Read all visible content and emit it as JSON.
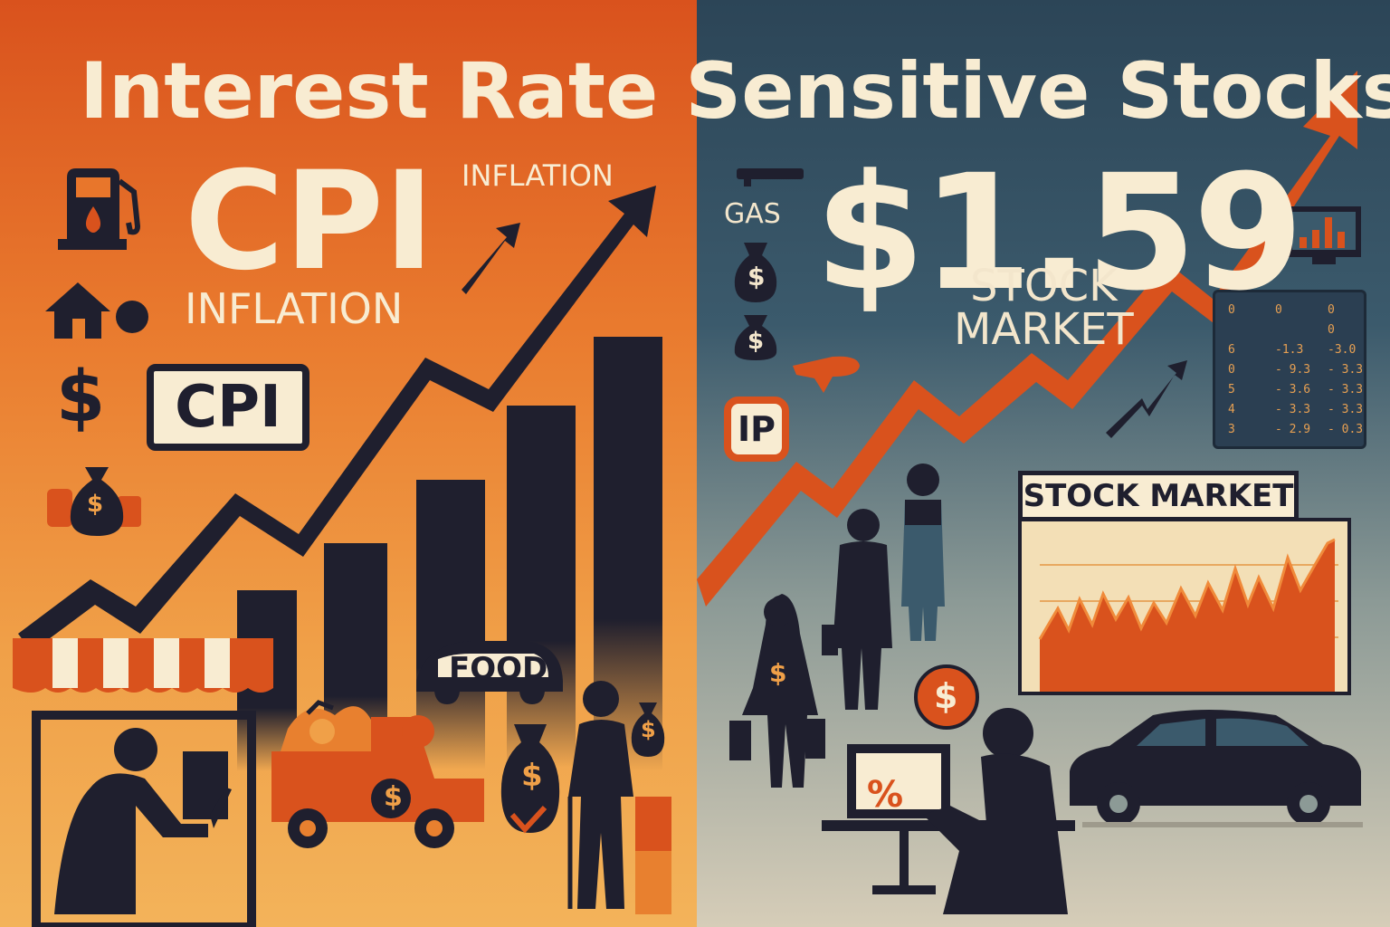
{
  "title": "Interest Rate Sensitive Stocks",
  "left": {
    "cpi_big": "CPI",
    "inflation_big": "INFLATION",
    "inflation_small": "INFLATION",
    "cpi_box": "CPI",
    "food_label": "FOOD",
    "dollar_sign": "$"
  },
  "right": {
    "gas_label": "GAS",
    "price": "$1.59",
    "stock_market_text": "STOCK\nMARKET",
    "ip_badge": "IP",
    "chart_title": "STOCK MARKET",
    "laptop_text": "%",
    "coin_text": "$",
    "ticker": [
      {
        "a": "0",
        "b": "0",
        "c": "0"
      },
      {
        "a": "",
        "b": "",
        "c": "0"
      },
      {
        "a": "6",
        "b": "-1.3",
        "c": "-3.0"
      },
      {
        "a": "0",
        "b": "- 9.3",
        "c": "- 3.3"
      },
      {
        "a": "5",
        "b": "- 3.6",
        "c": "- 3.3"
      },
      {
        "a": "4",
        "b": "- 3.3",
        "c": "- 3.3"
      },
      {
        "a": "3",
        "b": "- 2.9",
        "c": "- 0.3"
      }
    ]
  },
  "colors": {
    "accent_orange": "#d9521d",
    "dark": "#1f1f2e",
    "cream": "#f8ecd2",
    "slate": "#2c4557"
  },
  "icons": [
    "gas-pump-icon",
    "house-icon",
    "dollar-icon",
    "money-bag-icon",
    "storefront-icon",
    "truck-icon",
    "car-icon",
    "monitor-icon",
    "laptop-icon",
    "coin-icon",
    "person-icon"
  ]
}
